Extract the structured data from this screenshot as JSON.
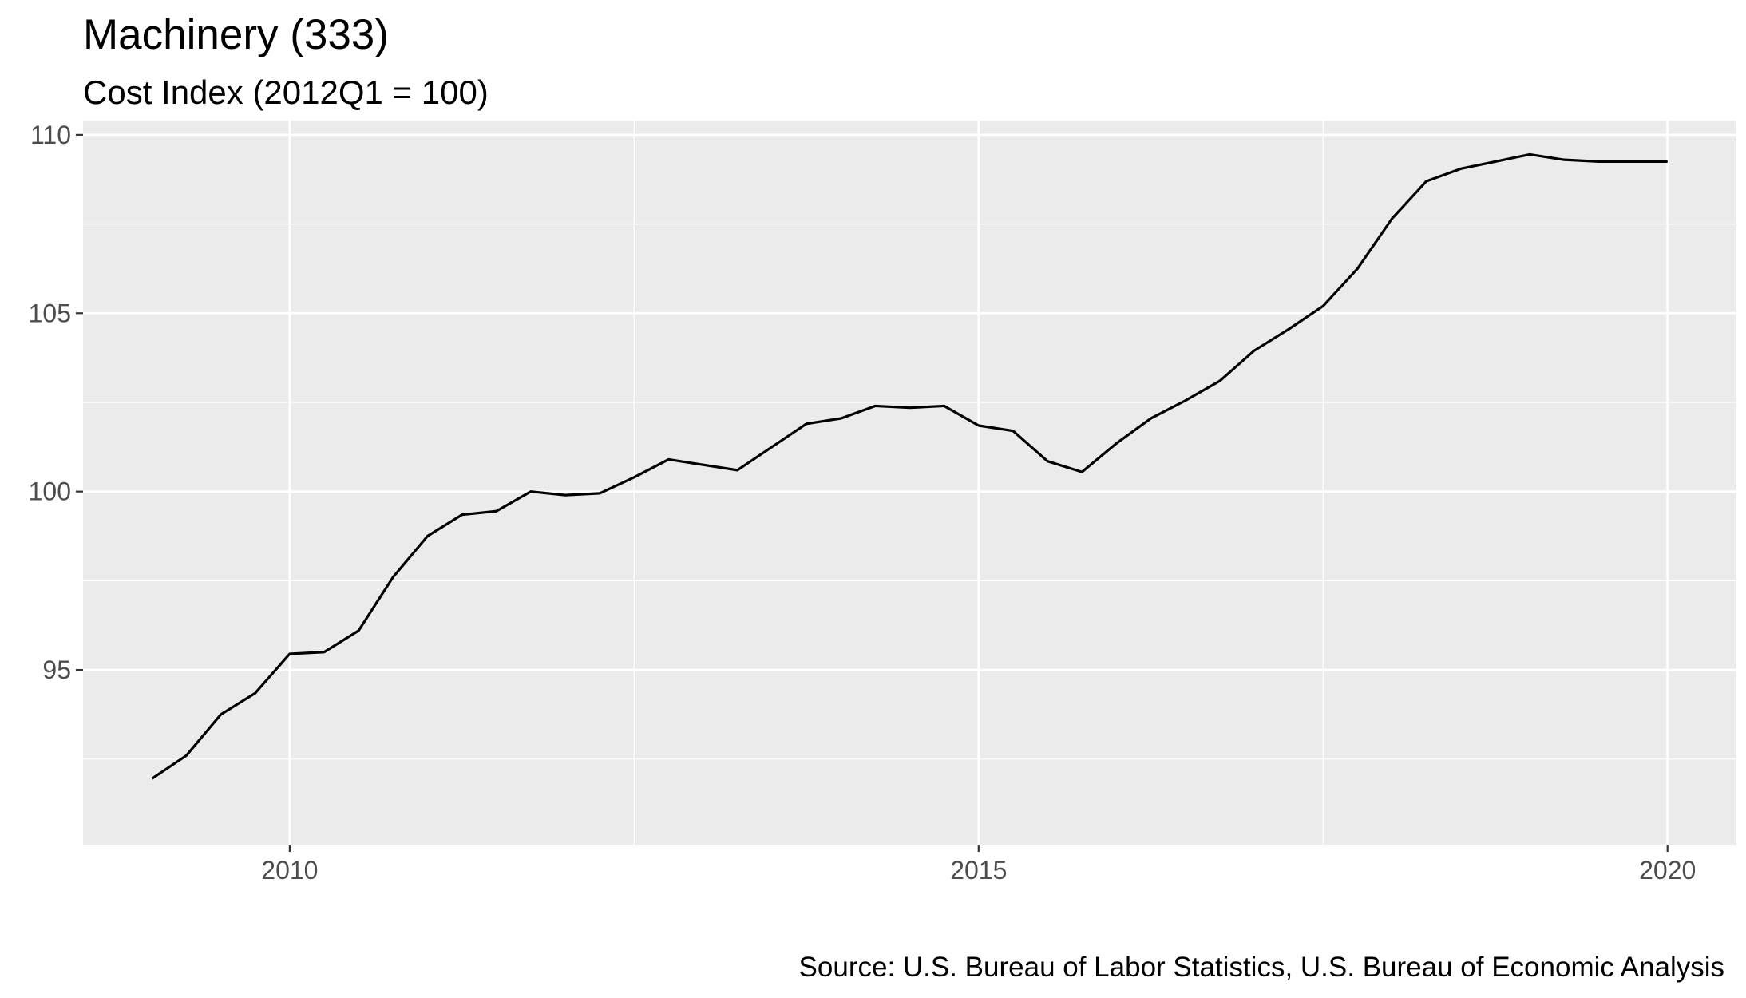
{
  "chart_data": {
    "type": "line",
    "title": "Machinery (333)",
    "subtitle": "Cost Index (2012Q1 = 100)",
    "caption": "Source: U.S. Bureau of Labor Statistics, U.S. Bureau of Economic Analysis",
    "xlabel": "",
    "ylabel": "",
    "xlim": [
      2008.5,
      2020.5
    ],
    "ylim": [
      90.1,
      110.4
    ],
    "x_ticks": [
      {
        "value": 2010,
        "label": "2010"
      },
      {
        "value": 2015,
        "label": "2015"
      },
      {
        "value": 2020,
        "label": "2020"
      }
    ],
    "x_minor_ticks": [
      2012.5,
      2017.5
    ],
    "y_ticks": [
      {
        "value": 95,
        "label": "95"
      },
      {
        "value": 100,
        "label": "100"
      },
      {
        "value": 105,
        "label": "105"
      },
      {
        "value": 110,
        "label": "110"
      }
    ],
    "y_minor_ticks": [
      92.5,
      97.5,
      102.5,
      107.5
    ],
    "grid": true,
    "legend": "none",
    "colors": {
      "panel_background": "#ebebeb",
      "grid": "#ffffff",
      "line": "#000000",
      "tick_label": "#4d4d4d",
      "tick_mark": "#333333"
    },
    "series": [
      {
        "x": [
          2009.0,
          2009.25,
          2009.5,
          2009.75,
          2010.0,
          2010.25,
          2010.5,
          2010.75,
          2011.0,
          2011.25,
          2011.5,
          2011.75,
          2012.0,
          2012.25,
          2012.5,
          2012.75,
          2013.0,
          2013.25,
          2013.5,
          2013.75,
          2014.0,
          2014.25,
          2014.5,
          2014.75,
          2015.0,
          2015.25,
          2015.5,
          2015.75,
          2016.0,
          2016.25,
          2016.5,
          2016.75,
          2017.0,
          2017.25,
          2017.5,
          2017.75,
          2018.0,
          2018.25,
          2018.5,
          2018.75,
          2019.0,
          2019.25,
          2019.5,
          2019.75,
          2020.0
        ],
        "values": [
          91.95,
          92.6,
          93.75,
          94.35,
          95.45,
          95.5,
          96.1,
          97.6,
          98.75,
          99.35,
          99.45,
          100.0,
          99.9,
          99.95,
          100.4,
          100.9,
          100.75,
          100.6,
          101.25,
          101.9,
          102.05,
          102.4,
          102.35,
          102.4,
          101.85,
          101.7,
          100.85,
          100.55,
          101.35,
          102.05,
          102.55,
          103.1,
          103.95,
          104.55,
          105.2,
          106.25,
          107.65,
          108.7,
          109.05,
          109.25,
          109.45,
          109.3,
          109.25,
          109.25,
          109.25
        ]
      }
    ]
  }
}
